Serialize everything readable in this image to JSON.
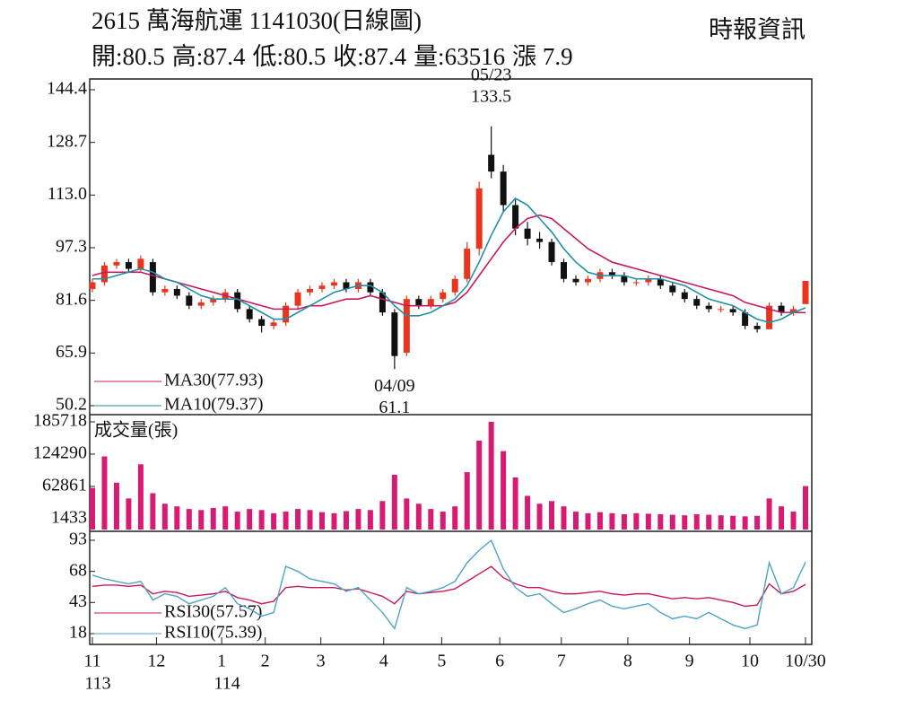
{
  "chart_data": [
    {
      "type": "candlestick",
      "title": "2615  萬海航運 1141030(日線圖)",
      "source": "時報資訊",
      "stats": [
        {
          "label": "開:",
          "value": 80.5
        },
        {
          "label": "高:",
          "value": 87.4
        },
        {
          "label": "低:",
          "value": 80.5
        },
        {
          "label": "收:",
          "value": 87.4
        },
        {
          "label": "量:",
          "value": 63516
        },
        {
          "label": "漲 ",
          "value": 7.9
        }
      ],
      "up_color": "#e8351e",
      "down_color": "#111111",
      "xlim": [
        0,
        59
      ],
      "ylim": [
        50.2,
        144.4
      ],
      "yticks": [
        144.4,
        128.7,
        {
          "value": 113,
          "label": "113.0"
        },
        97.3,
        81.6,
        65.9,
        50.2
      ],
      "open": [
        85,
        87,
        92,
        93,
        91,
        93,
        84,
        85,
        83,
        80,
        81,
        82,
        84,
        79,
        76,
        74,
        75,
        80,
        84,
        85,
        86,
        87,
        85,
        87,
        84,
        78,
        66,
        82,
        80,
        82,
        84,
        88,
        97,
        125,
        120,
        110,
        103,
        100,
        99,
        93,
        88,
        87,
        88,
        90,
        89,
        87,
        87,
        88,
        86,
        84,
        82,
        80,
        79,
        79,
        78,
        74,
        73,
        80,
        78,
        80.5
      ],
      "high": [
        88,
        93,
        94,
        94,
        95,
        94,
        86,
        86,
        84,
        82,
        83,
        85,
        85,
        80,
        77,
        76,
        81,
        85,
        86,
        87,
        88,
        88,
        88,
        88,
        85,
        79,
        83,
        83,
        83,
        85,
        89,
        99,
        117,
        133.5,
        122,
        112,
        105,
        102,
        100,
        94,
        89,
        89,
        91,
        91,
        90,
        88,
        89,
        89,
        87,
        85,
        83,
        81,
        80,
        80,
        79,
        75,
        81,
        81,
        80,
        87.4
      ],
      "low": [
        84,
        86,
        91,
        90,
        90,
        83,
        83,
        82,
        79,
        79,
        80,
        81,
        78,
        75,
        72,
        73,
        74,
        79,
        83,
        84,
        85,
        84,
        84,
        83,
        77,
        61.1,
        65,
        79,
        79,
        81,
        83,
        87,
        95,
        118,
        108,
        101,
        98,
        97,
        92,
        87,
        86,
        86,
        87,
        88,
        86,
        86,
        86,
        85,
        83,
        81,
        79,
        78,
        78,
        77,
        73,
        72,
        73,
        77,
        77,
        80.5
      ],
      "close": [
        87,
        92,
        93,
        91,
        94,
        84,
        85,
        83,
        80,
        81,
        82,
        84,
        79,
        76,
        74,
        75,
        80,
        84,
        85,
        86,
        87,
        85,
        87,
        84,
        78,
        65,
        82,
        80,
        82,
        84,
        88,
        97,
        115,
        120,
        110,
        103,
        100,
        99,
        93,
        88,
        87,
        88,
        90,
        89,
        87,
        87,
        88,
        86,
        84,
        82,
        80,
        79,
        79,
        78,
        74,
        73,
        80,
        78,
        79,
        87.4
      ],
      "series": [
        {
          "name": "MA30(77.93)",
          "color": "#c8185e",
          "values": [
            89,
            90,
            90,
            90,
            90,
            89,
            88,
            87,
            86,
            85,
            84,
            83,
            82,
            81,
            80,
            79,
            79,
            79,
            80,
            80,
            81,
            82,
            82,
            83,
            82,
            81,
            80,
            80,
            80,
            80,
            81,
            84,
            89,
            94,
            99,
            103,
            106,
            107,
            106,
            103,
            100,
            97,
            95,
            93,
            92,
            91,
            90,
            89,
            88,
            87,
            86,
            85,
            84,
            83,
            81,
            80,
            79,
            78,
            78,
            77.93
          ]
        },
        {
          "name": "MA10(79.37)",
          "color": "#1f8fa8",
          "values": [
            88,
            88,
            89,
            90,
            91,
            90,
            88,
            87,
            85,
            83,
            82,
            82,
            82,
            80,
            78,
            76,
            76,
            78,
            80,
            82,
            84,
            85,
            86,
            86,
            84,
            80,
            77,
            77,
            78,
            80,
            82,
            86,
            93,
            101,
            108,
            112,
            110,
            106,
            102,
            97,
            93,
            90,
            89,
            89,
            89,
            88,
            88,
            88,
            87,
            86,
            84,
            82,
            81,
            80,
            78,
            76,
            75,
            76,
            78,
            79.37
          ]
        }
      ],
      "annotations": [
        {
          "date": "05/23",
          "value": 133.5
        },
        {
          "date": "04/09",
          "value": 61.1
        }
      ]
    },
    {
      "type": "bar",
      "title": "成交量(張)",
      "color": "#d81b72",
      "xlim": [
        0,
        59
      ],
      "ylim": [
        1433,
        185718
      ],
      "yticks": [
        185718,
        124290,
        62861,
        1433
      ],
      "values": [
        60000,
        120000,
        70000,
        40000,
        105000,
        50000,
        30000,
        25000,
        20000,
        18000,
        22000,
        25000,
        15000,
        20000,
        18000,
        12000,
        15000,
        20000,
        18000,
        14000,
        12000,
        16000,
        20000,
        18000,
        35000,
        85000,
        40000,
        30000,
        20000,
        15000,
        25000,
        90000,
        150000,
        185718,
        130000,
        80000,
        45000,
        30000,
        35000,
        25000,
        15000,
        12000,
        14000,
        12000,
        10000,
        12000,
        11000,
        10000,
        9000,
        8000,
        10000,
        9000,
        8000,
        7000,
        6000,
        7000,
        40000,
        25000,
        15000,
        63516
      ]
    },
    {
      "type": "line",
      "xlim": [
        0,
        59
      ],
      "ylim": [
        18,
        93
      ],
      "yticks": [
        93,
        68,
        43,
        18
      ],
      "xticks": [
        {
          "value": 0,
          "label": "11"
        },
        {
          "value": 5.3,
          "label": "12"
        },
        {
          "value": 10.7,
          "label": "1"
        },
        {
          "value": 14.3,
          "label": "2"
        },
        {
          "value": 18.9,
          "label": "3"
        },
        {
          "value": 24.1,
          "label": "4"
        },
        {
          "value": 28.9,
          "label": "5"
        },
        {
          "value": 33.7,
          "label": "6"
        },
        {
          "value": 38.8,
          "label": "7"
        },
        {
          "value": 44.3,
          "label": "8"
        },
        {
          "value": 49.4,
          "label": "9"
        },
        {
          "value": 54.4,
          "label": "10"
        },
        {
          "value": 59,
          "label": "10/30"
        }
      ],
      "year_ticks": [
        {
          "value": 0,
          "label": "113"
        },
        {
          "value": 10.7,
          "label": "114"
        }
      ],
      "series": [
        {
          "name": "RSI30(57.57)",
          "color": "#c8185e",
          "values": [
            56,
            57,
            57,
            56,
            57,
            50,
            52,
            51,
            48,
            49,
            50,
            52,
            47,
            45,
            42,
            44,
            55,
            56,
            55,
            55,
            55,
            53,
            54,
            51,
            48,
            42,
            52,
            50,
            51,
            52,
            54,
            60,
            66,
            72,
            63,
            58,
            55,
            55,
            52,
            50,
            50,
            51,
            52,
            50,
            49,
            50,
            50,
            48,
            46,
            47,
            46,
            47,
            45,
            43,
            40,
            41,
            58,
            50,
            52,
            57.57
          ]
        },
        {
          "name": "RSI10(75.39)",
          "color": "#4fa3c7",
          "values": [
            65,
            62,
            60,
            58,
            60,
            45,
            50,
            48,
            42,
            45,
            48,
            55,
            42,
            38,
            32,
            35,
            72,
            68,
            62,
            60,
            58,
            52,
            55,
            45,
            35,
            22,
            55,
            50,
            52,
            55,
            60,
            75,
            85,
            93,
            70,
            55,
            48,
            50,
            42,
            35,
            38,
            42,
            45,
            40,
            38,
            40,
            42,
            35,
            30,
            32,
            30,
            35,
            30,
            25,
            22,
            25,
            75,
            50,
            55,
            75.39
          ]
        }
      ]
    }
  ]
}
